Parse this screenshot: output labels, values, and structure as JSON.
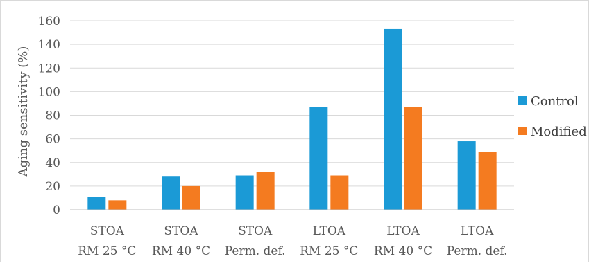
{
  "chart_data": {
    "type": "bar",
    "categories": [
      [
        "STOA",
        "RM 25 °C"
      ],
      [
        "STOA",
        "RM 40 °C"
      ],
      [
        "STOA",
        "Perm. def."
      ],
      [
        "LTOA",
        "RM 25 °C"
      ],
      [
        "LTOA",
        "RM 40 °C"
      ],
      [
        "LTOA",
        "Perm. def."
      ]
    ],
    "series": [
      {
        "name": "Control",
        "color": "#1b9ad6",
        "values": [
          11,
          28,
          29,
          87,
          153,
          58
        ]
      },
      {
        "name": "Modified",
        "color": "#f47b20",
        "values": [
          8,
          20,
          32,
          29,
          87,
          49
        ]
      }
    ],
    "ylabel": "Aging sensitivity (%)",
    "xlabel": "",
    "ylim": [
      0,
      160
    ],
    "yticks": [
      0,
      20,
      40,
      60,
      80,
      100,
      120,
      140,
      160
    ],
    "grid": true,
    "legend_position": "right"
  }
}
